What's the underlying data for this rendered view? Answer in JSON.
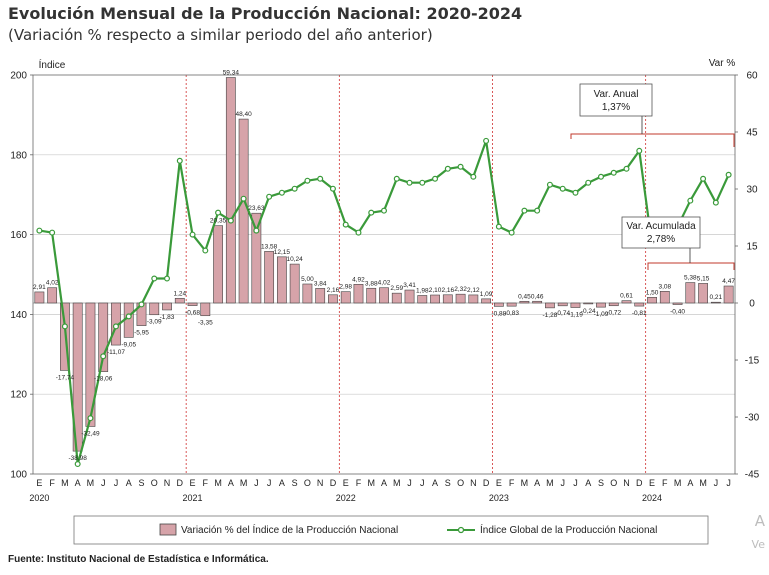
{
  "page": {
    "title": "Evolución Mensual de la Producción Nacional: 2020-2024",
    "subtitle": "(Variación % respecto a similar periodo del año anterior)",
    "source": "Fuente: Instituto Nacional de Estadística e Informática.",
    "watermark_line1": "A",
    "watermark_line2": "Ve"
  },
  "colors": {
    "bar_fill": "#d6a3a9",
    "bar_stroke": "#444444",
    "line": "#3a9a3a",
    "marker_fill": "#ffffff",
    "year_divider": "#d03030",
    "callout_bracket": "#c0392b",
    "grid": "#c8c8c8"
  },
  "chart_data": {
    "type": "bar+line",
    "title": "Evolución Mensual de la Producción Nacional: 2020-2024",
    "subtitle": "(Variación % respecto a similar periodo del año anterior)",
    "y_left_label": "Índice",
    "y_right_label": "Var %",
    "y_left_range": [
      100,
      200
    ],
    "y_left_ticks": [
      100,
      120,
      140,
      160,
      180,
      200
    ],
    "y_right_range": [
      -45,
      60
    ],
    "y_right_ticks": [
      -45,
      -30,
      -15,
      0,
      15,
      30,
      45,
      60
    ],
    "month_letters": [
      "E",
      "F",
      "M",
      "A",
      "M",
      "J",
      "J",
      "A",
      "S",
      "O",
      "N",
      "D",
      "E",
      "F",
      "M",
      "A",
      "M",
      "J",
      "J",
      "A",
      "S",
      "O",
      "N",
      "D",
      "E",
      "F",
      "M",
      "A",
      "M",
      "J",
      "J",
      "A",
      "S",
      "O",
      "N",
      "D",
      "E",
      "F",
      "M",
      "A",
      "M",
      "J",
      "J",
      "A",
      "S",
      "O",
      "N",
      "D",
      "E",
      "F",
      "M",
      "A",
      "M",
      "J",
      "J"
    ],
    "year_labels": [
      {
        "index": 0,
        "label": "2020"
      },
      {
        "index": 12,
        "label": "2021"
      },
      {
        "index": 24,
        "label": "2022"
      },
      {
        "index": 36,
        "label": "2023"
      },
      {
        "index": 48,
        "label": "2024"
      }
    ],
    "year_divider_after_index": [
      11,
      23,
      35,
      47
    ],
    "series": [
      {
        "name": "Variación % del Índice de la Producción Nacional",
        "kind": "bar",
        "axis": "right",
        "values": [
          2.91,
          4.02,
          -17.74,
          -38.98,
          -32.49,
          -18.06,
          -11.07,
          -9.05,
          -5.95,
          -3.09,
          -1.83,
          1.24,
          -0.68,
          -3.35,
          20.35,
          59.34,
          48.4,
          23.63,
          13.58,
          12.15,
          10.24,
          5.0,
          3.84,
          2.16,
          2.98,
          4.92,
          3.88,
          4.02,
          2.59,
          3.41,
          1.98,
          2.1,
          2.16,
          2.32,
          2.12,
          1.09,
          -0.88,
          -0.83,
          0.45,
          0.46,
          -1.28,
          -0.74,
          -1.19,
          -0.24,
          -1.09,
          -0.72,
          0.61,
          -0.81,
          1.5,
          3.08,
          -0.4,
          5.38,
          5.15,
          0.21,
          4.47
        ],
        "labels": [
          "2,91",
          "4,02",
          "-17,74",
          "-38,98",
          "-32,49",
          "-18,06",
          "-11,07",
          "-9,05",
          "-5,95",
          "-3,09",
          "-1,83",
          "1,24",
          "-0,68",
          "-3,35",
          "20,35",
          "59,34",
          "48,40",
          "23,63",
          "13,58",
          "12,15",
          "10,24",
          "5,00",
          "3,84",
          "2,16",
          "2,98",
          "4,92",
          "3,88",
          "4,02",
          "2,59",
          "3,41",
          "1,98",
          "2,10",
          "2,16",
          "2,32",
          "2,12",
          "1,09",
          "-0,88",
          "-0,83",
          "0,45",
          "0,46",
          "-1,28",
          "-0,74",
          "-1,19",
          "-0,24",
          "-1,09",
          "-0,72",
          "0,61",
          "-0,81",
          "1,50",
          "3,08",
          "-0,40",
          "5,38",
          "5,15",
          "0,21",
          "4,47"
        ]
      },
      {
        "name": "Índice Global de la Producción Nacional",
        "kind": "line",
        "axis": "left",
        "values": [
          161.0,
          160.5,
          137.0,
          102.5,
          114.0,
          129.5,
          137.0,
          139.5,
          142.5,
          149.0,
          149.0,
          178.5,
          160.0,
          156.0,
          165.5,
          163.5,
          169.0,
          161.0,
          169.5,
          170.5,
          171.5,
          173.5,
          174.0,
          171.5,
          162.5,
          160.5,
          165.5,
          166.0,
          174.0,
          173.0,
          173.0,
          174.0,
          176.5,
          177.0,
          174.5,
          183.5,
          162.0,
          160.5,
          166.0,
          166.0,
          172.5,
          171.5,
          170.5,
          173.0,
          174.5,
          175.5,
          176.5,
          181.0,
          157.5,
          158.5,
          162.0,
          168.5,
          174.0,
          168.0,
          175.0
        ]
      }
    ],
    "annotations": [
      {
        "name": "Var. Anual",
        "title": "Var. Anual",
        "value": "1,37%"
      },
      {
        "name": "Var. Acumulada",
        "title": "Var. Acumulada",
        "value": "2,78%"
      }
    ],
    "legend": {
      "position": "bottom"
    }
  }
}
